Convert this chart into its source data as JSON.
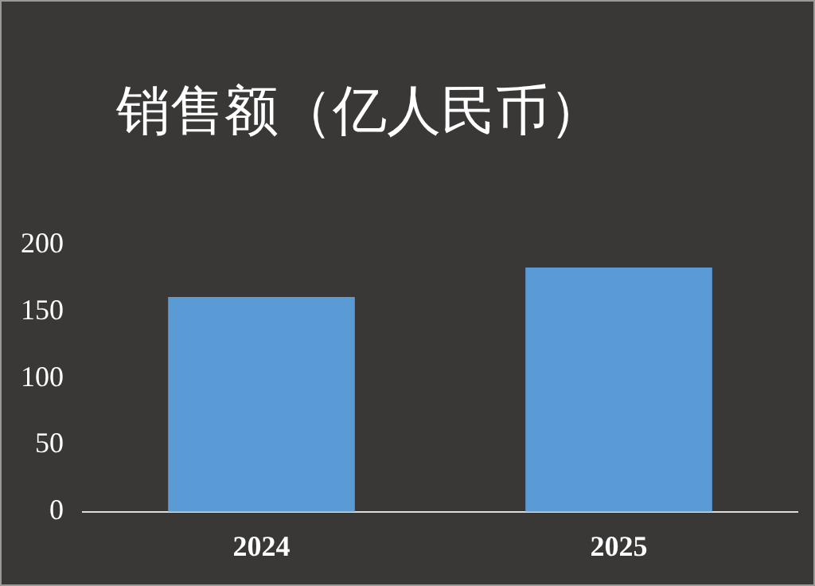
{
  "chart_data": {
    "type": "bar",
    "title": "销售额（亿人民币）",
    "categories": [
      "2024",
      "2025"
    ],
    "values": [
      161,
      183
    ],
    "color": "#5b9bd5",
    "ylim": [
      0,
      200
    ],
    "yticks": [
      0,
      50,
      100,
      150,
      200
    ],
    "grid": false
  }
}
